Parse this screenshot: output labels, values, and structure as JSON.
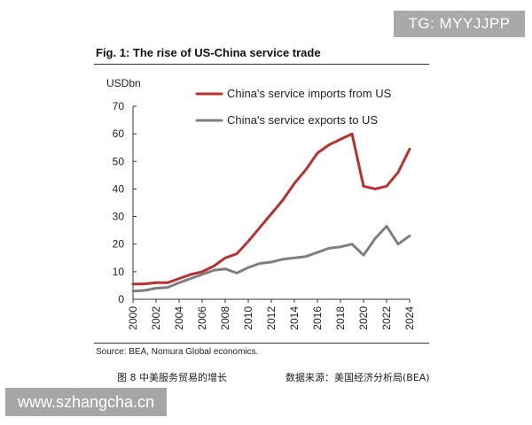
{
  "watermark_top": "TG: MYYJJPP",
  "watermark_bottom": "www.szhangcha.cn",
  "figure_title": "Fig. 1: The rise of US-China service trade",
  "source": "Source: BEA, Nomura Global economics.",
  "caption_left": "图 8  中美服务贸易的增长",
  "caption_right": "数据来源：美国经济分析局(BEA)",
  "chart_data": {
    "type": "line",
    "title": "Fig. 1: The rise of US-China service trade",
    "ylabel": "USDbn",
    "xlabel": "",
    "ylim": [
      0,
      70
    ],
    "xlim": [
      2000,
      2024
    ],
    "yticks": [
      0,
      10,
      20,
      30,
      40,
      50,
      60,
      70
    ],
    "xticks": [
      2000,
      2002,
      2004,
      2006,
      2008,
      2010,
      2012,
      2014,
      2016,
      2018,
      2020,
      2022,
      2024
    ],
    "legend_position": "top",
    "grid": false,
    "series": [
      {
        "name": "China's service imports from US",
        "color": "#b8312f",
        "x": [
          2000,
          2001,
          2002,
          2003,
          2004,
          2005,
          2006,
          2007,
          2008,
          2009,
          2010,
          2011,
          2012,
          2013,
          2014,
          2015,
          2016,
          2017,
          2018,
          2019,
          2020,
          2021,
          2022,
          2023,
          2024
        ],
        "y": [
          5.5,
          5.6,
          6,
          6,
          7.5,
          9,
          10,
          12,
          15,
          16.5,
          21,
          26,
          31,
          36,
          42,
          47,
          53,
          56,
          58,
          60,
          41,
          40,
          41,
          46,
          54.5
        ]
      },
      {
        "name": "China's service exports to US",
        "color": "#7f7f7f",
        "x": [
          2000,
          2001,
          2002,
          2003,
          2004,
          2005,
          2006,
          2007,
          2008,
          2009,
          2010,
          2011,
          2012,
          2013,
          2014,
          2015,
          2016,
          2017,
          2018,
          2019,
          2020,
          2021,
          2022,
          2023,
          2024
        ],
        "y": [
          3,
          3.2,
          4,
          4.3,
          6,
          7.5,
          9,
          10.5,
          11,
          9.5,
          11.5,
          13,
          13.5,
          14.5,
          15,
          15.5,
          17,
          18.5,
          19,
          20,
          16,
          22,
          26.5,
          20,
          23
        ]
      }
    ]
  }
}
